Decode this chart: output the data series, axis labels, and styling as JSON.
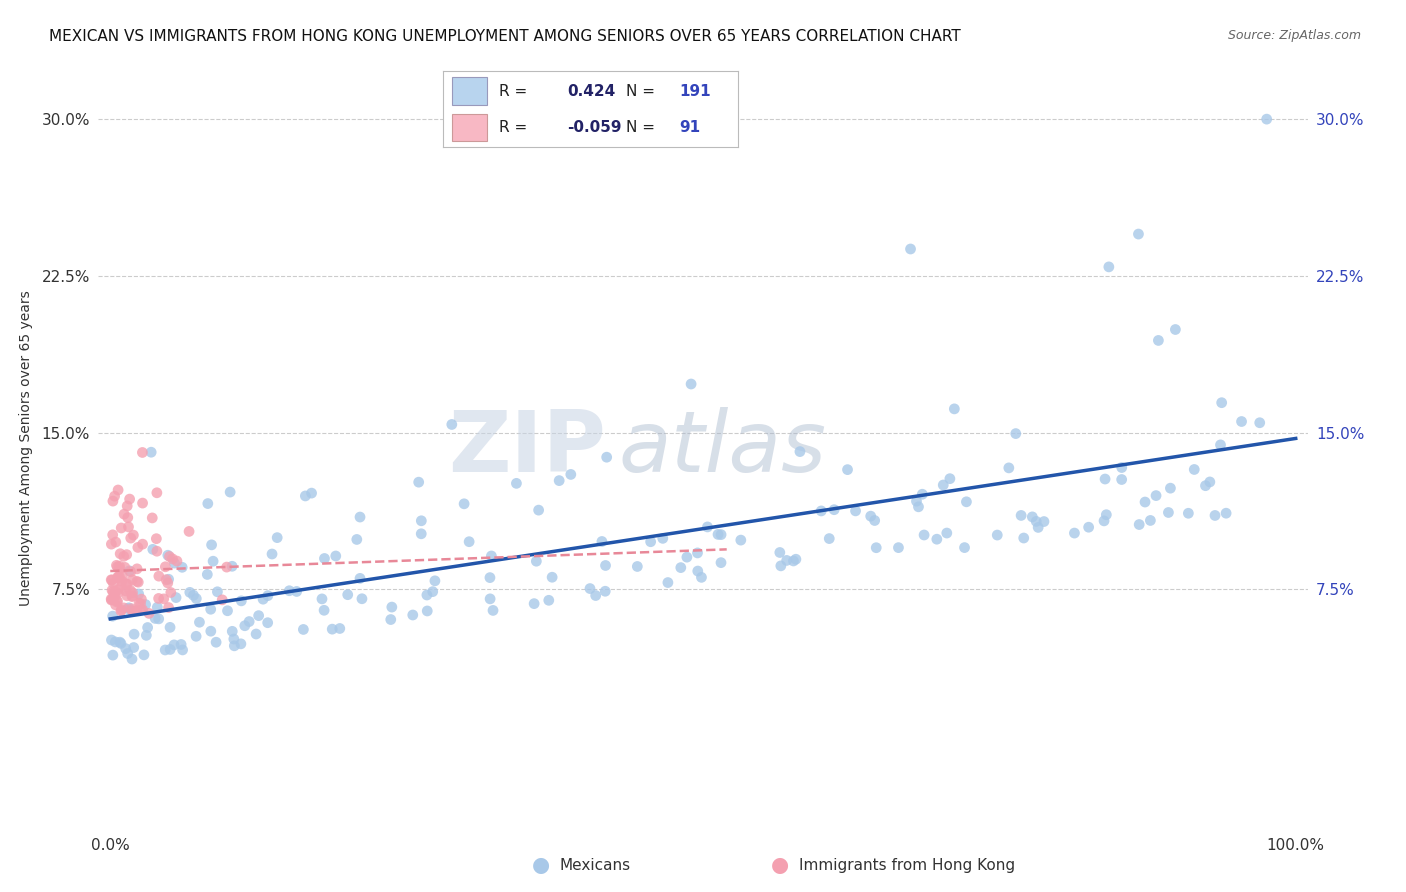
{
  "title": "MEXICAN VS IMMIGRANTS FROM HONG KONG UNEMPLOYMENT AMONG SENIORS OVER 65 YEARS CORRELATION CHART",
  "source": "Source: ZipAtlas.com",
  "ylabel": "Unemployment Among Seniors over 65 years",
  "xlim": [
    -0.01,
    1.01
  ],
  "ylim": [
    -0.04,
    0.325
  ],
  "yticks": [
    0.075,
    0.15,
    0.225,
    0.3
  ],
  "ytick_labels": [
    "7.5%",
    "15.0%",
    "22.5%",
    "30.0%"
  ],
  "xticks": [
    0.0,
    1.0
  ],
  "xtick_labels": [
    "0.0%",
    "100.0%"
  ],
  "r_mexican": 0.424,
  "n_mexican": 191,
  "r_hk": -0.059,
  "n_hk": 91,
  "scatter_color_mexican": "#a8c8e8",
  "scatter_color_hk": "#f4a0b0",
  "line_color_mexican": "#2255aa",
  "line_color_hk": "#e88898",
  "watermark_zip": "ZIP",
  "watermark_atlas": "atlas",
  "background_color": "#ffffff",
  "grid_color": "#cccccc",
  "legend_box_color_mexican": "#b8d4ee",
  "legend_box_color_hk": "#f8b8c4",
  "legend_text_color": "#3344bb",
  "title_fontsize": 11,
  "source_fontsize": 9,
  "ylabel_fontsize": 10,
  "legend_r_color": "#222266",
  "legend_n_color": "#3344bb"
}
